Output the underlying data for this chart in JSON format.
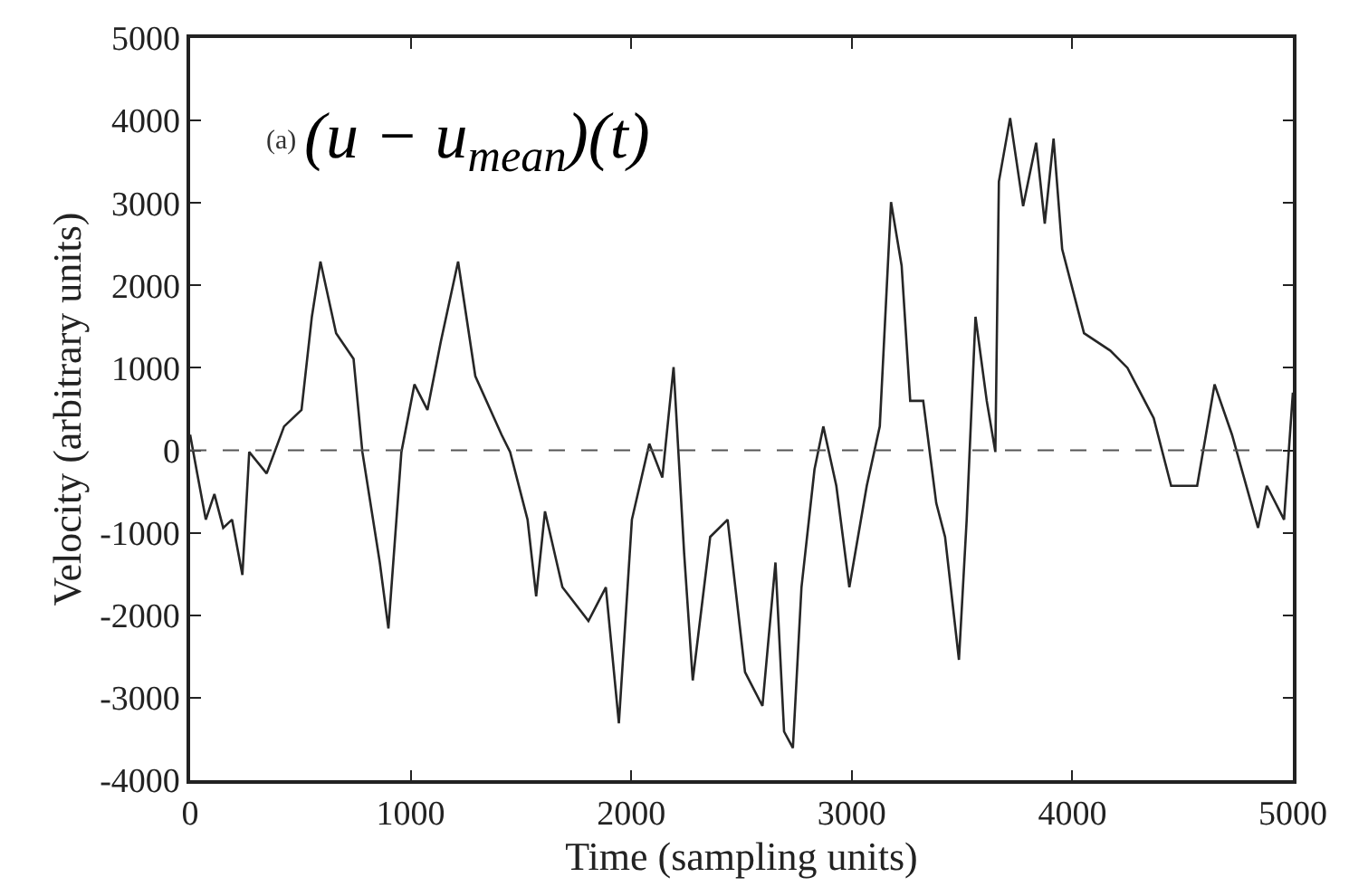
{
  "chart_data": {
    "type": "line",
    "xlabel": "Time (sampling units)",
    "ylabel": "Velocity (arbitrary units)",
    "annotations": [
      "(a)",
      "(u − u$_{mean}$)(t)"
    ],
    "x": [
      0,
      32,
      71,
      110,
      150,
      190,
      237,
      268,
      347,
      426,
      505,
      552,
      591,
      662,
      741,
      781,
      860,
      899,
      958,
      1017,
      1076,
      1136,
      1215,
      1293,
      1412,
      1451,
      1530,
      1569,
      1609,
      1688,
      1806,
      1885,
      1944,
      2003,
      2082,
      2141,
      2192,
      2240,
      2279,
      2358,
      2437,
      2516,
      2595,
      2654,
      2693,
      2733,
      2772,
      2831,
      2871,
      2930,
      2989,
      3068,
      3127,
      3178,
      3226,
      3265,
      3324,
      3383,
      3423,
      3486,
      3521,
      3561,
      3612,
      3651,
      3667,
      3718,
      3777,
      3836,
      3875,
      3915,
      3954,
      4053,
      4172,
      4250,
      4369,
      4448,
      4566,
      4645,
      4724,
      4842,
      4882,
      4960,
      5000
    ],
    "series": [
      {
        "color": "#262626",
        "values": [
          190,
          -280,
          -840,
          -530,
          -940,
          -840,
          -1510,
          -20,
          -280,
          290,
          490,
          1620,
          2290,
          1420,
          1110,
          -20,
          -1360,
          -2160,
          -20,
          800,
          490,
          1310,
          2290,
          900,
          190,
          -20,
          -840,
          -1770,
          -740,
          -1660,
          -2070,
          -1660,
          -3310,
          -840,
          80,
          -330,
          1010,
          -1250,
          -2790,
          -1050,
          -840,
          -2690,
          -3100,
          -1360,
          -3410,
          -3610,
          -1660,
          -230,
          290,
          -430,
          -1660,
          -430,
          290,
          3010,
          2240,
          600,
          600,
          -640,
          -1050,
          -2540,
          -840,
          1620,
          600,
          -20,
          3260,
          4030,
          2960,
          3730,
          2750,
          3780,
          2440,
          1420,
          1210,
          1000,
          390,
          -430,
          -430,
          800,
          190,
          -940,
          -430,
          -840,
          700
        ]
      }
    ],
    "xlim": [
      0,
      5000
    ],
    "xticks": [
      0,
      1000,
      2000,
      3000,
      4000,
      5000
    ],
    "ylim": [
      -4000,
      5000
    ],
    "yticks": [
      -4000,
      -3000,
      -2000,
      -1000,
      0,
      1000,
      2000,
      3000,
      4000,
      5000
    ],
    "ref_lines": [
      {
        "axis": "y",
        "value": 0,
        "color": "#555555",
        "line_style": "dashed"
      }
    ],
    "marker": "none",
    "line_style": "solid"
  }
}
